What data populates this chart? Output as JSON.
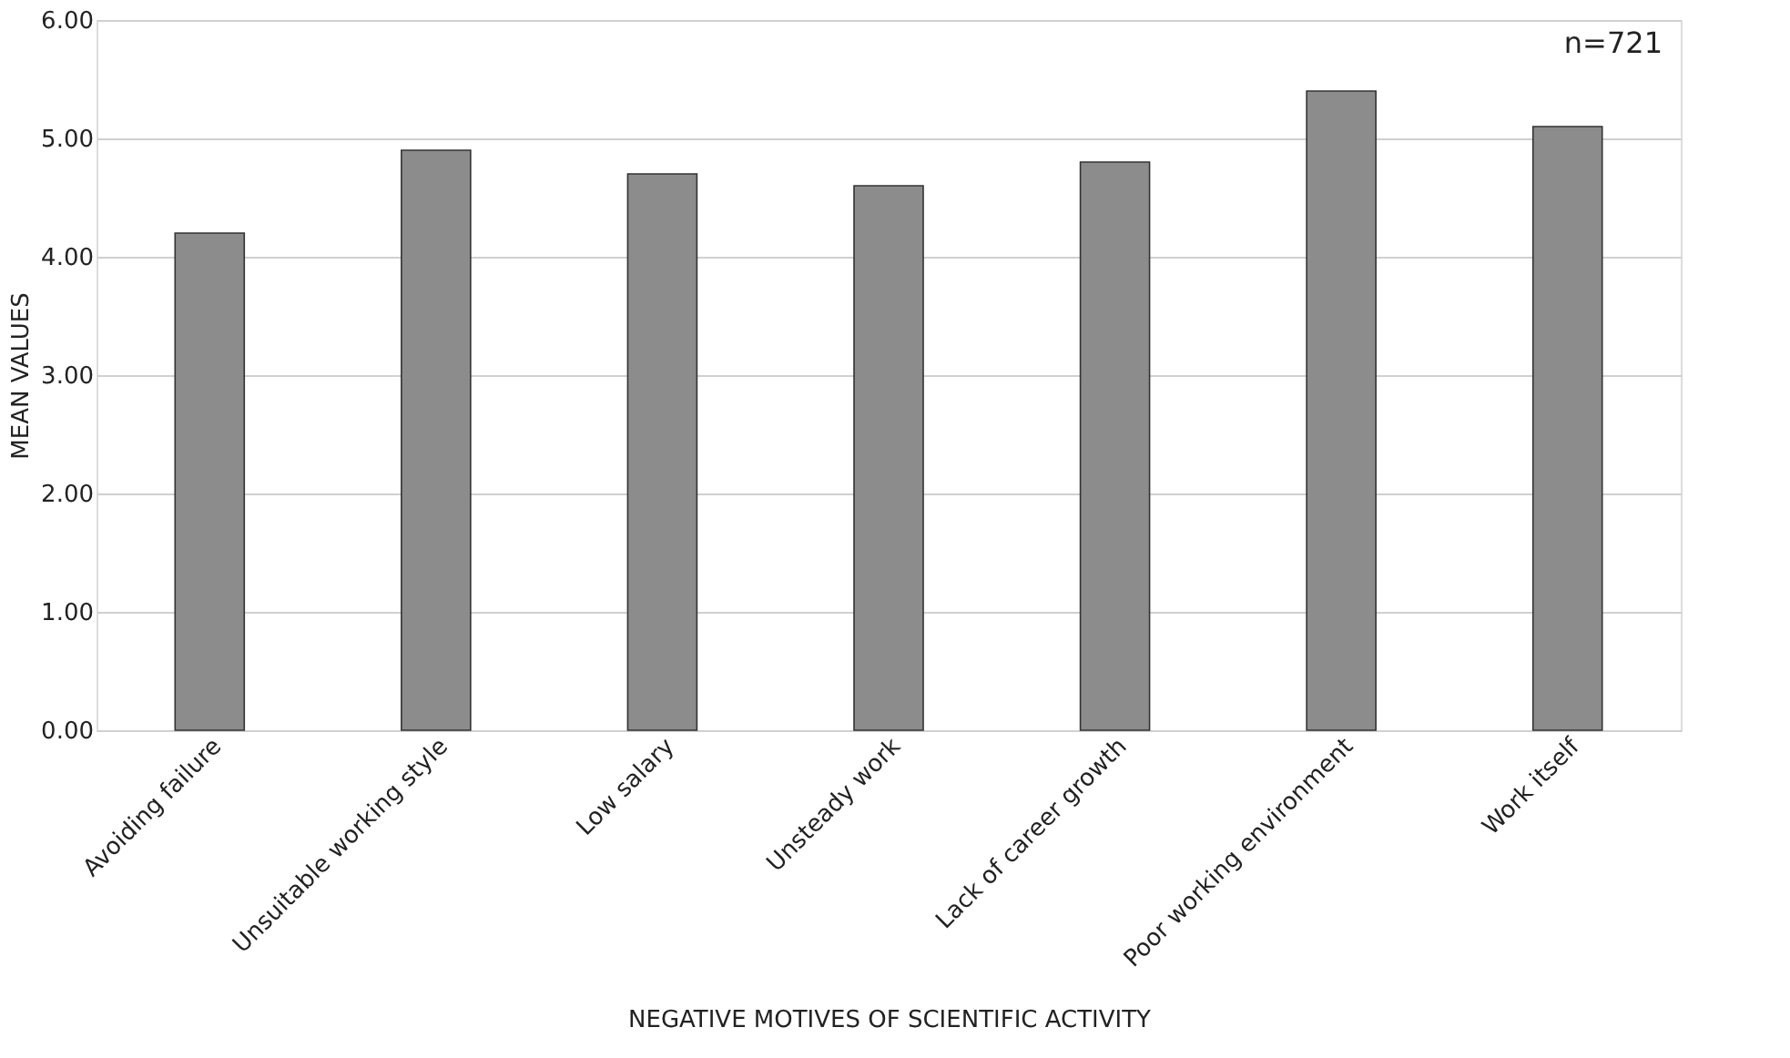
{
  "chart_data": {
    "type": "bar",
    "categories": [
      "Avoiding failure",
      "Unsuitable working style",
      "Low salary",
      "Unsteady work",
      "Lack of career growth",
      "Poor working environment",
      "Work itself"
    ],
    "values": [
      4.2,
      4.9,
      4.7,
      4.6,
      4.8,
      5.4,
      5.1
    ],
    "color": "#8c8c8c",
    "xlabel": "NEGATIVE MOTIVES OF SCIENTIFIC ACTIVITY",
    "ylabel": "MEAN VALUES",
    "ylim": [
      0,
      6
    ],
    "yticks": [
      {
        "value": 0,
        "label": "0.00"
      },
      {
        "value": 1,
        "label": "1.00"
      },
      {
        "value": 2,
        "label": "2.00"
      },
      {
        "value": 3,
        "label": "3.00"
      },
      {
        "value": 4,
        "label": "4.00"
      },
      {
        "value": 5,
        "label": "5.00"
      },
      {
        "value": 6,
        "label": "6.00"
      }
    ],
    "grid": "y",
    "annotations": [
      "n=721"
    ]
  }
}
